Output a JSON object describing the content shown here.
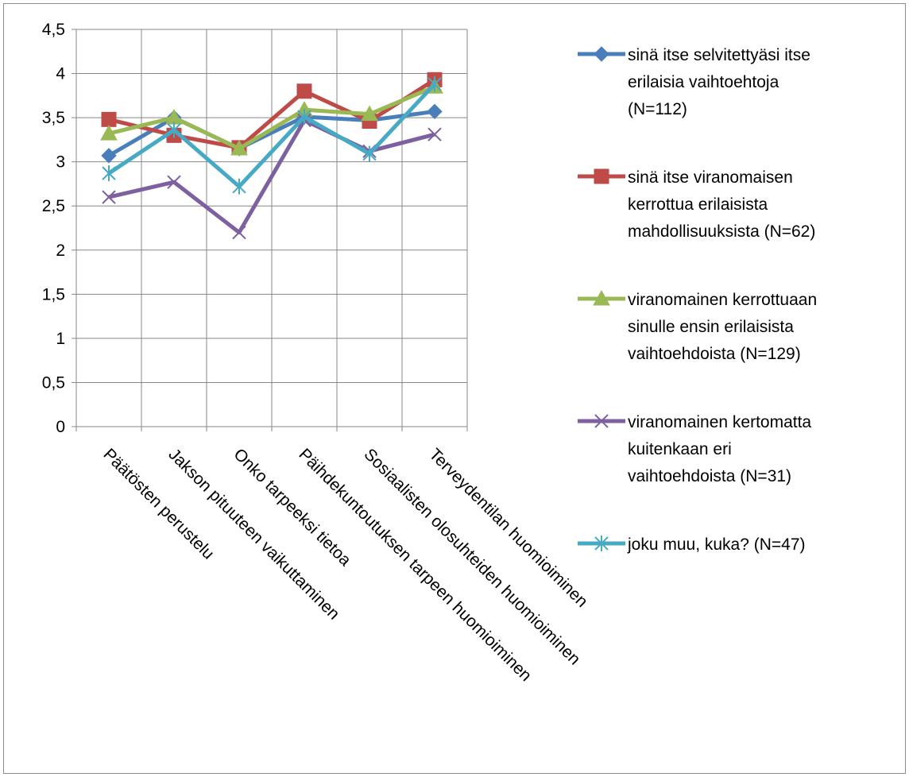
{
  "chart_data": {
    "type": "line",
    "categories": [
      "Päätösten perustelu",
      "Jakson pituuteen vaikuttaminen",
      "Onko tarpeeksi tietoa",
      "Päihdekuntoutuksen tarpeen huomioiminen",
      "Sosiaalisten olosuhteiden huomioiminen",
      "Terveydentilan huomioiminen"
    ],
    "ylim": [
      0,
      4.5
    ],
    "yticks": [
      "0",
      "0,5",
      "1",
      "1,5",
      "2",
      "2,5",
      "3",
      "3,5",
      "4",
      "4,5"
    ],
    "grid": true,
    "legend_position": "right",
    "series": [
      {
        "name": "sinä itse selvitettyäsi itse erilaisia vaihtoehtoja (N=112)",
        "legend_lines": [
          "sinä itse selvitettyäsi itse",
          "erilaisia vaihtoehtoja",
          "(N=112)"
        ],
        "values": [
          3.07,
          3.5,
          3.15,
          3.51,
          3.47,
          3.57
        ],
        "color": "#4a7ebb",
        "marker": "diamond"
      },
      {
        "name": "sinä itse viranomaisen kerrottua erilaisista mahdollisuuksista (N=62)",
        "legend_lines": [
          "sinä itse viranomaisen",
          "kerrottua erilaisista",
          "mahdollisuuksista (N=62)"
        ],
        "values": [
          3.48,
          3.3,
          3.16,
          3.8,
          3.46,
          3.93
        ],
        "color": "#be4b48",
        "marker": "square"
      },
      {
        "name": "viranomainen kerrottuaan sinulle ensin erilaisista vaihtoehdoista (N=129)",
        "legend_lines": [
          "viranomainen kerrottuaan",
          "sinulle ensin erilaisista",
          "vaihtoehdoista (N=129)"
        ],
        "values": [
          3.32,
          3.5,
          3.15,
          3.59,
          3.54,
          3.85
        ],
        "color": "#98b954",
        "marker": "triangle"
      },
      {
        "name": "viranomainen kertomatta kuitenkaan eri vaihtoehdoista (N=31)",
        "legend_lines": [
          "viranomainen kertomatta",
          "kuitenkaan eri",
          "vaihtoehdoista (N=31)"
        ],
        "values": [
          2.6,
          2.77,
          2.2,
          3.47,
          3.12,
          3.31
        ],
        "color": "#7d60a0",
        "marker": "x"
      },
      {
        "name": "joku muu, kuka? (N=47)",
        "legend_lines": [
          "joku muu, kuka? (N=47)"
        ],
        "values": [
          2.87,
          3.36,
          2.72,
          3.51,
          3.09,
          3.88
        ],
        "color": "#46aac5",
        "marker": "star"
      }
    ]
  }
}
